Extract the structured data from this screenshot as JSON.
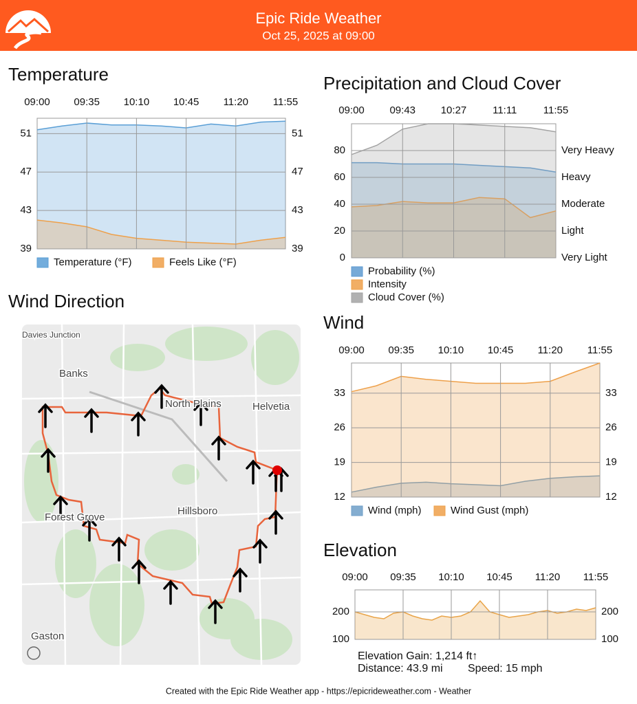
{
  "header": {
    "title": "Epic Ride Weather",
    "subtitle": "Oct 25, 2025 at 09:00"
  },
  "map": {
    "title": "Wind Direction",
    "labels": [
      "Davies Junction",
      "Banks",
      "North Plains",
      "Helvetia",
      "Forest Grove",
      "Hillsboro",
      "Gaston"
    ]
  },
  "footer": "Created with the Epic Ride Weather app - https://epicrideweather.com - Weather",
  "chart_data": [
    {
      "type": "area",
      "title": "Temperature",
      "categories": [
        "09:00",
        null,
        "09:35",
        null,
        "10:10",
        null,
        "10:45",
        null,
        "11:20",
        null,
        "11:55"
      ],
      "ylim": [
        39,
        52.6
      ],
      "yticks": [
        39,
        43,
        47,
        51
      ],
      "grid": true,
      "series": [
        {
          "name": "Temperature (°F)",
          "color": "#5a9fd6",
          "values": [
            51.4,
            51.8,
            52.1,
            51.9,
            51.9,
            51.8,
            51.6,
            52.0,
            51.8,
            52.2,
            52.3
          ]
        },
        {
          "name": "Feels Like (°F)",
          "color": "#eea04a",
          "values": [
            42.0,
            41.7,
            41.3,
            40.5,
            40.1,
            39.9,
            39.7,
            39.6,
            39.5,
            39.9,
            40.2
          ]
        }
      ]
    },
    {
      "type": "area",
      "title": "Precipitation and Cloud Cover",
      "categories": [
        "09:00",
        null,
        "09:43",
        null,
        "10:27",
        null,
        "11:11",
        null,
        "11:55"
      ],
      "ylim": [
        0,
        100
      ],
      "yticks": [
        0,
        20,
        40,
        60,
        80
      ],
      "grid": true,
      "y2lim": [
        0,
        100
      ],
      "y2ticks": [
        {
          "value": 0,
          "label": "Very Light"
        },
        {
          "value": 20,
          "label": "Light"
        },
        {
          "value": 40,
          "label": "Moderate"
        },
        {
          "value": 60,
          "label": "Heavy"
        },
        {
          "value": 80,
          "label": "Very Heavy"
        }
      ],
      "series": [
        {
          "name": "Probability (%)",
          "color": "#5f9bd0",
          "values": [
            71,
            71,
            70,
            70,
            70,
            69,
            68,
            67,
            64
          ]
        },
        {
          "name": "Intensity",
          "color": "#eea04a",
          "axis": "y2",
          "values": [
            38,
            39,
            42,
            41,
            41,
            45,
            44,
            30,
            35
          ]
        },
        {
          "name": "Cloud Cover (%)",
          "color": "#a3a3a3",
          "values": [
            77,
            84,
            96,
            100,
            100,
            99,
            98,
            97,
            94
          ]
        }
      ]
    },
    {
      "type": "area",
      "title": "Wind",
      "categories": [
        "09:00",
        null,
        "09:35",
        null,
        "10:10",
        null,
        "10:45",
        null,
        "11:20",
        null,
        "11:55"
      ],
      "ylim": [
        12,
        39.1
      ],
      "yticks": [
        12,
        19,
        26,
        33
      ],
      "grid": true,
      "series": [
        {
          "name": "Wind (mph)",
          "color": "#6f9fc8",
          "values": [
            13.0,
            14.0,
            14.8,
            15.0,
            14.7,
            14.5,
            14.3,
            15.2,
            15.8,
            16.1,
            16.3
          ]
        },
        {
          "name": "Wind Gust (mph)",
          "color": "#eea04a",
          "values": [
            33.3,
            34.5,
            36.4,
            35.8,
            35.4,
            35.0,
            35.0,
            35.0,
            35.4,
            37.3,
            39.1
          ]
        }
      ]
    },
    {
      "type": "area",
      "title": "Elevation",
      "categories": [
        "09:00",
        null,
        null,
        null,
        null,
        "09:35",
        null,
        null,
        null,
        null,
        "10:10",
        null,
        null,
        null,
        null,
        "10:45",
        null,
        null,
        null,
        null,
        "11:20",
        null,
        null,
        null,
        null,
        "11:55"
      ],
      "ylim": [
        100,
        280
      ],
      "yticks": [
        100,
        200
      ],
      "grid": true,
      "series": [
        {
          "color": "#e9a448",
          "values": [
            200,
            190,
            180,
            175,
            195,
            200,
            185,
            175,
            170,
            185,
            180,
            185,
            200,
            240,
            200,
            190,
            180,
            185,
            190,
            200,
            205,
            195,
            200,
            210,
            205,
            215
          ]
        }
      ],
      "annotations": [
        "Elevation Gain: 1,214 ft↑",
        "Distance: 43.9 mi",
        "Speed: 15 mph"
      ]
    }
  ]
}
